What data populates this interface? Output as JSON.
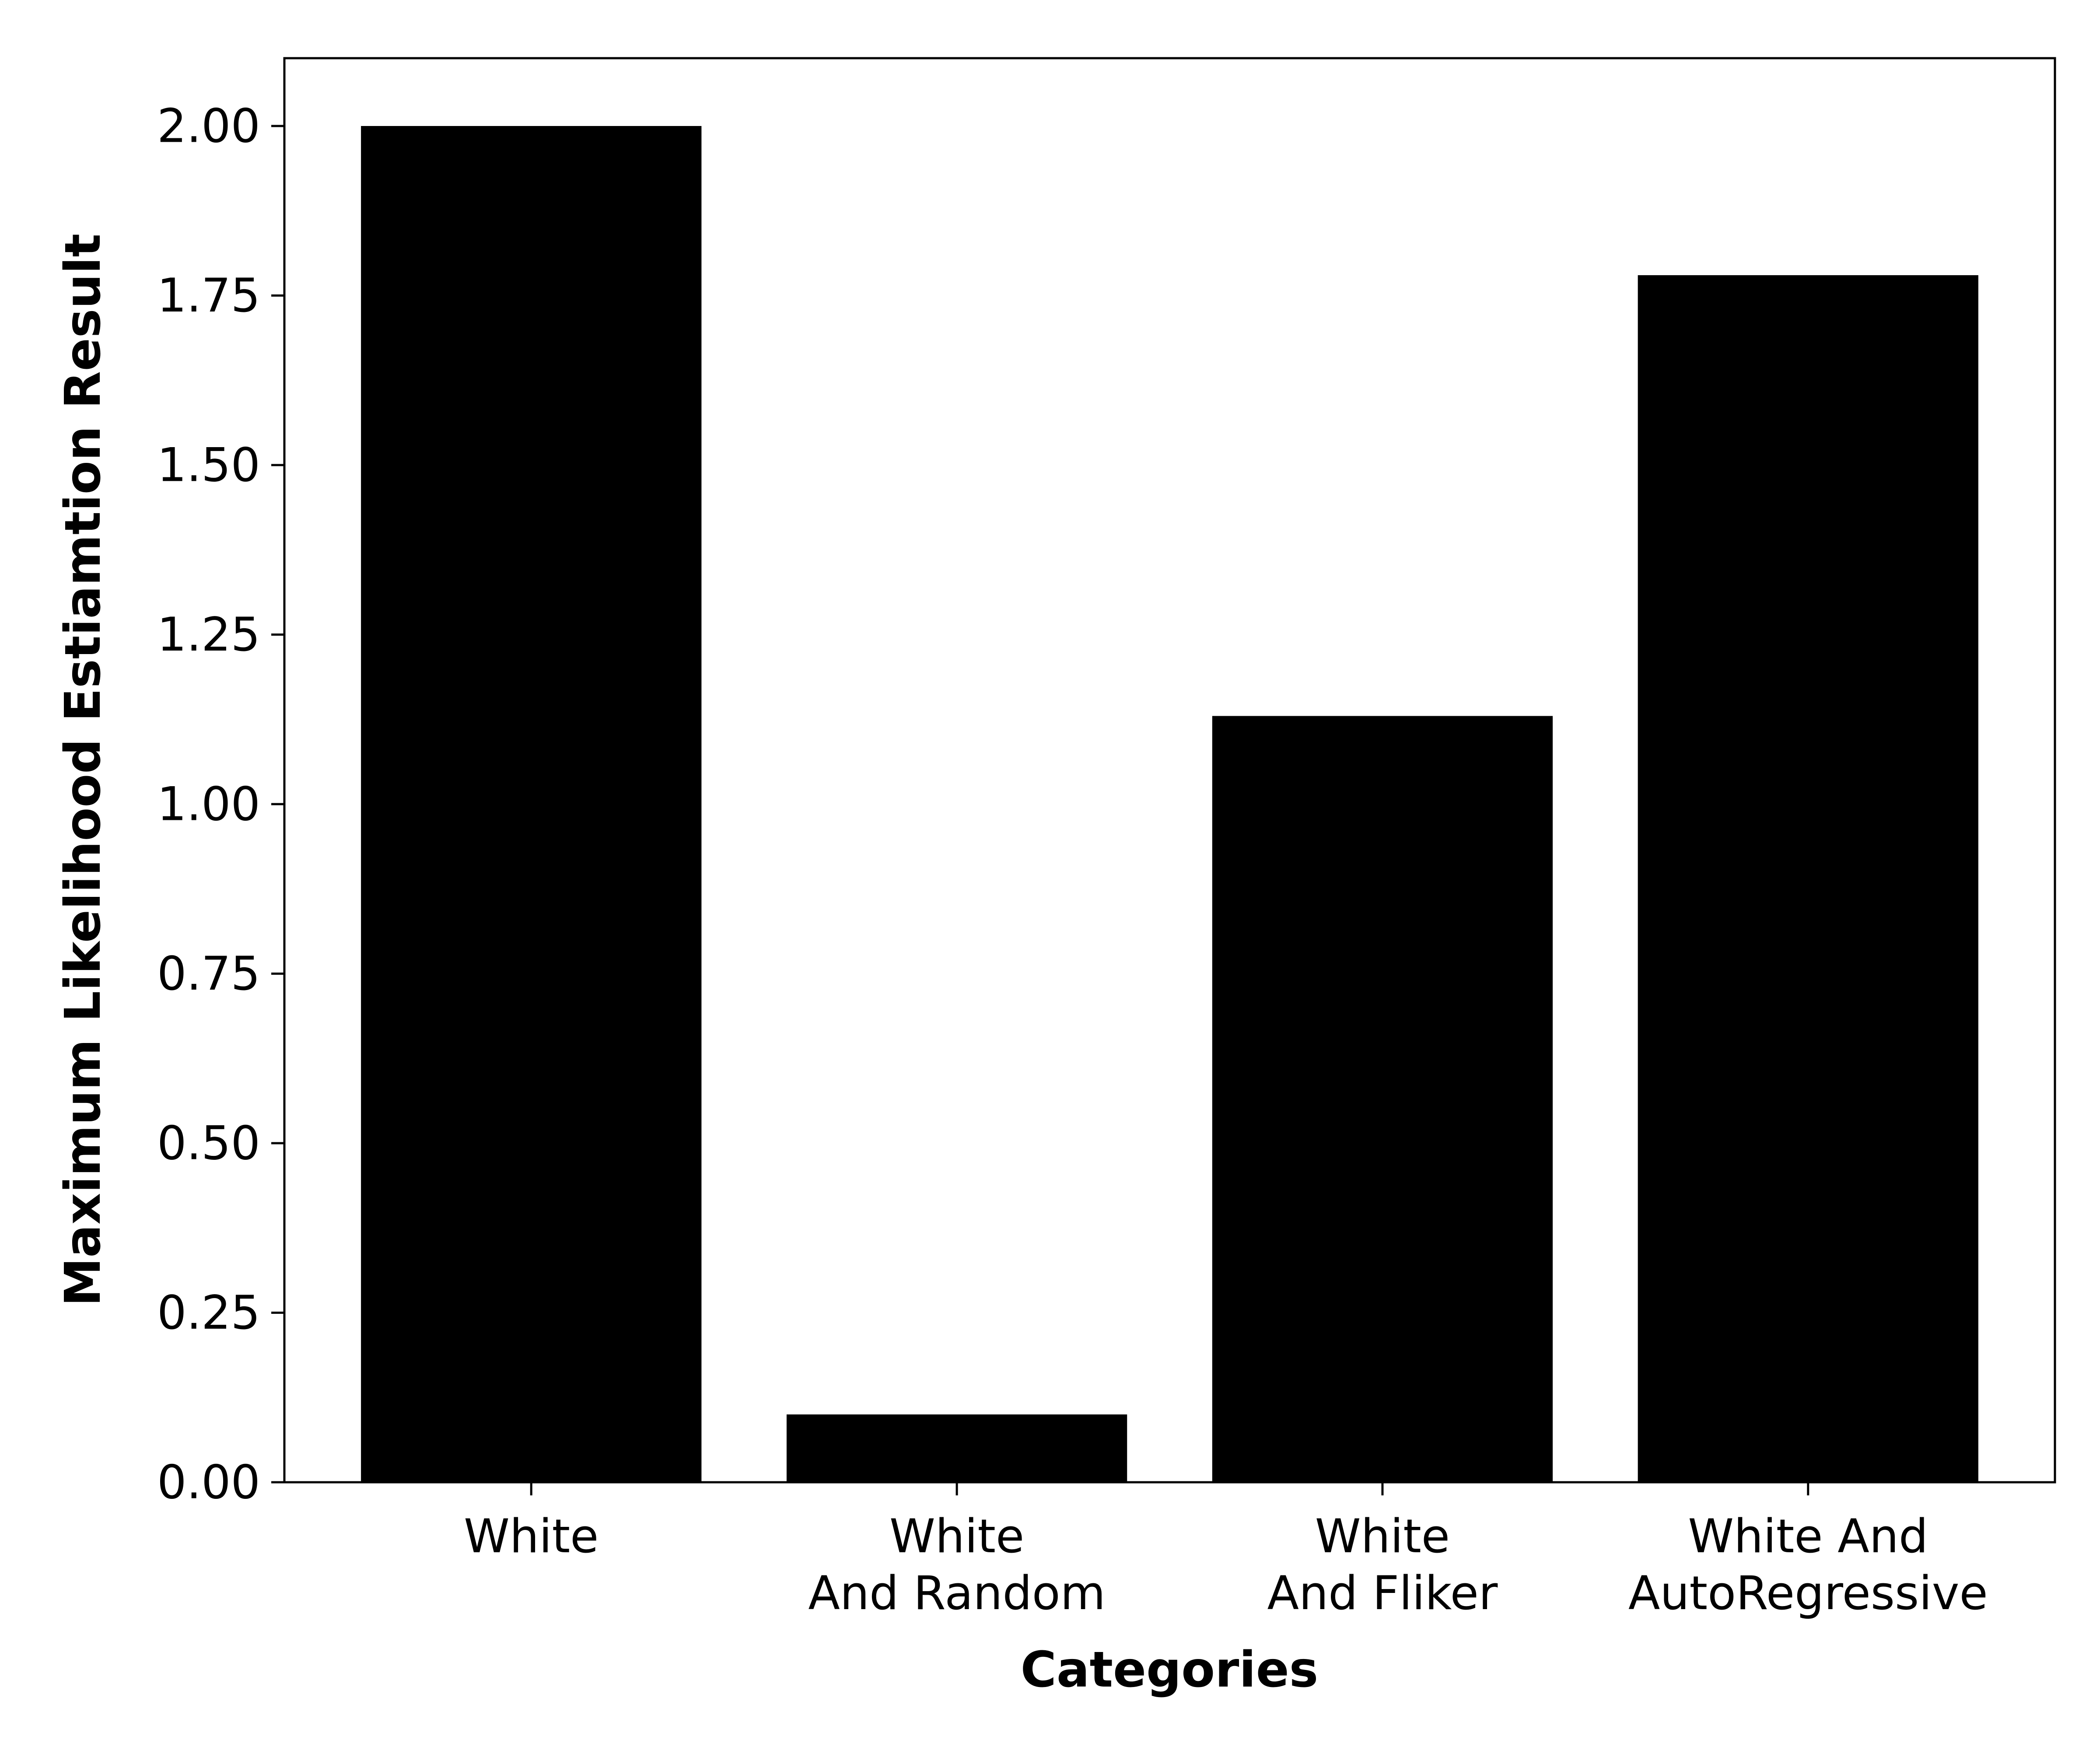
{
  "chart_data": {
    "type": "bar",
    "title": "",
    "xlabel": "Categories",
    "ylabel": "Maximum Likelihood Estiamtion Result",
    "categories": [
      [
        "White"
      ],
      [
        "White",
        "And Random"
      ],
      [
        "White",
        "And Fliker"
      ],
      [
        "White And",
        "AutoRegressive"
      ]
    ],
    "values": [
      2.0,
      0.1,
      1.13,
      1.78
    ],
    "ylim": [
      0,
      2.1
    ],
    "yticks": [
      "0.00",
      "0.25",
      "0.50",
      "0.75",
      "1.00",
      "1.25",
      "1.50",
      "1.75",
      "2.00"
    ],
    "bar_color": "#000000",
    "grid": false,
    "legend": "none"
  }
}
